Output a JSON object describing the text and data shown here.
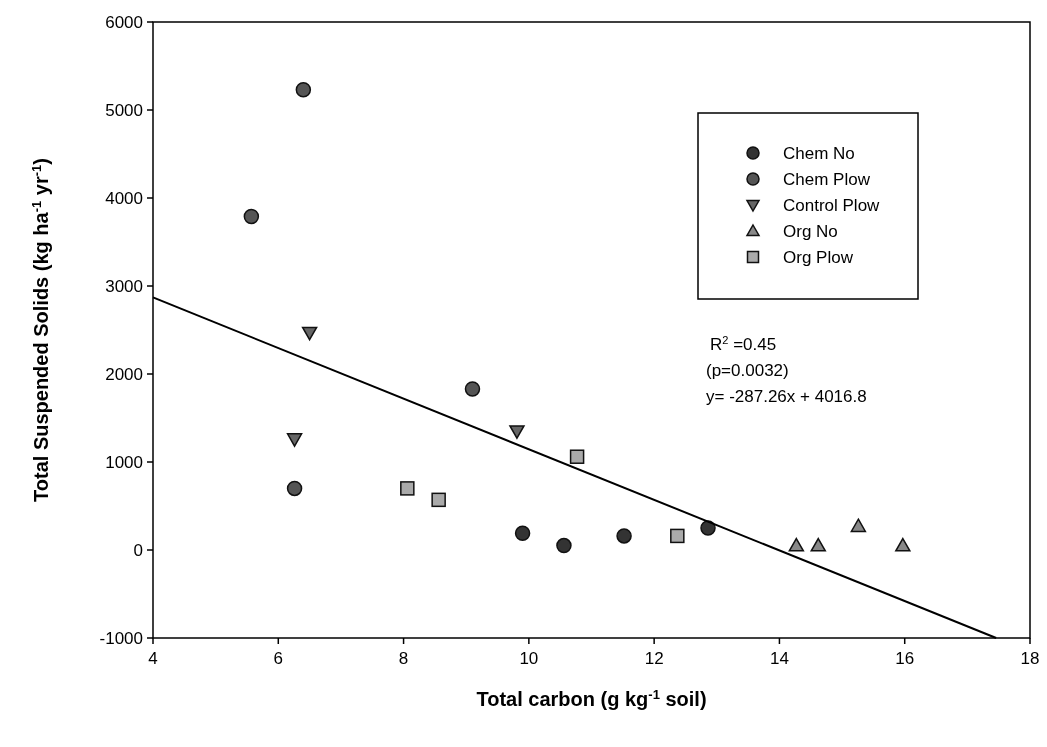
{
  "chart_data": {
    "type": "scatter",
    "xlabel": "Total carbon (g kg$^{-1}$ soil)",
    "ylabel": "Total Suspended Solids (kg ha$^{-1}$ yr$^{-1}$)",
    "xlim": [
      4,
      18
    ],
    "xticks": [
      4,
      6,
      8,
      10,
      12,
      14,
      16,
      18
    ],
    "ylim": [
      -1000,
      6000
    ],
    "yticks": [
      -1000,
      0,
      1000,
      2000,
      3000,
      4000,
      5000,
      6000
    ],
    "grid": false,
    "legend": "top right",
    "annotations": [
      "R$^{2}$ =0.45",
      "(p=0.0032)",
      "y= -287.26x + 4016.8"
    ],
    "series": [
      {
        "name": "Chem No",
        "color": "#333333",
        "marker": "circle",
        "x": [
          9.9,
          10.56,
          11.52,
          12.86
        ],
        "values": [
          190,
          50,
          160,
          250
        ]
      },
      {
        "name": "Chem Plow",
        "color": "#555555",
        "marker": "circle",
        "x": [
          5.57,
          6.4,
          6.26,
          9.1
        ],
        "values": [
          3790,
          5230,
          700,
          1830
        ]
      },
      {
        "name": "Control Plow",
        "color": "#666666",
        "marker": "triangle-down",
        "x": [
          6.26,
          6.5,
          9.81
        ],
        "values": [
          1260,
          2470,
          1350
        ]
      },
      {
        "name": "Org No",
        "color": "#888888",
        "marker": "triangle",
        "x": [
          14.27,
          14.62,
          15.26,
          15.97
        ],
        "values": [
          50,
          50,
          270,
          50
        ]
      },
      {
        "name": "Org Plow",
        "color": "#aaaaaa",
        "marker": "square",
        "x": [
          8.06,
          8.56,
          10.77,
          12.37
        ],
        "values": [
          700,
          570,
          1060,
          160
        ]
      },
      {
        "type": "line",
        "color": "#000000",
        "x": [
          4,
          17.46
        ],
        "values": [
          2870,
          -1000
        ]
      }
    ]
  }
}
